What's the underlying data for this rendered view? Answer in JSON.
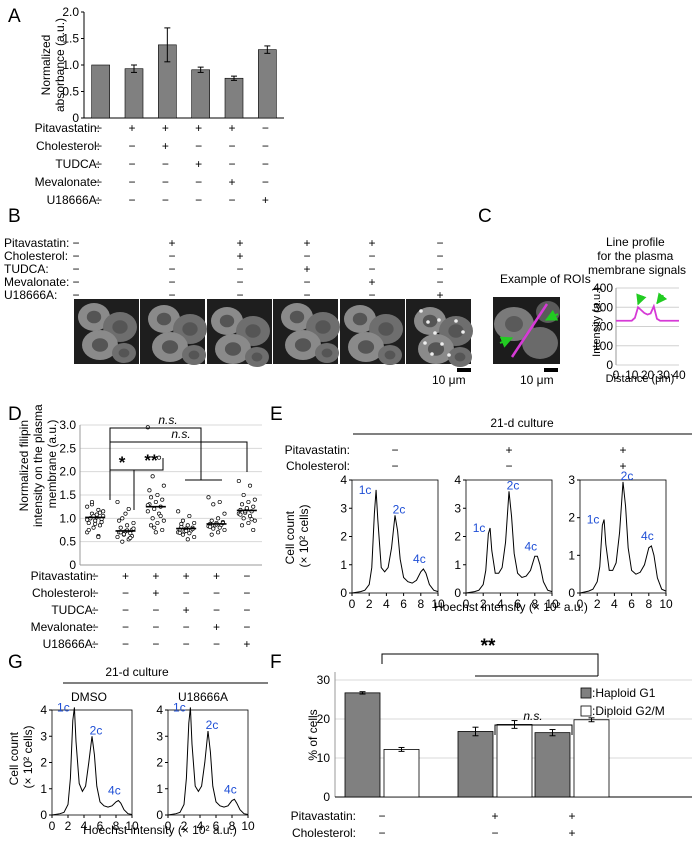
{
  "panel_labels": {
    "A": "A",
    "B": "B",
    "C": "C",
    "D": "D",
    "E": "E",
    "F": "F",
    "G": "G"
  },
  "colors": {
    "bar_gray": "#808080",
    "accent_blue": "#1f4fd6",
    "profile_magenta": "#d63ad6",
    "arrow_green": "#22cc22"
  },
  "row_labels": {
    "pitavastatin": "Pitavastatin:",
    "cholesterol": "Cholesterol:",
    "tudca": "TUDCA:",
    "mevalonate": "Mevalonate:",
    "u18666a": "U18666A:"
  },
  "signs": {
    "plus": "+",
    "minus": "−"
  },
  "conditions6": [
    {
      "pitavastatin": "−",
      "cholesterol": "−",
      "tudca": "−",
      "mevalonate": "−",
      "u18666a": "−"
    },
    {
      "pitavastatin": "+",
      "cholesterol": "−",
      "tudca": "−",
      "mevalonate": "−",
      "u18666a": "−"
    },
    {
      "pitavastatin": "+",
      "cholesterol": "+",
      "tudca": "−",
      "mevalonate": "−",
      "u18666a": "−"
    },
    {
      "pitavastatin": "+",
      "cholesterol": "−",
      "tudca": "+",
      "mevalonate": "−",
      "u18666a": "−"
    },
    {
      "pitavastatin": "+",
      "cholesterol": "−",
      "tudca": "−",
      "mevalonate": "+",
      "u18666a": "−"
    },
    {
      "pitavastatin": "−",
      "cholesterol": "−",
      "tudca": "−",
      "mevalonate": "−",
      "u18666a": "+"
    }
  ],
  "scale_bar": "10 μm",
  "panel_c": {
    "roi_title": "Example of ROIs",
    "profile_title": "Line profile for the plasma membrane signals"
  },
  "culture_label": "21-d culture",
  "histogram": {
    "ylabel_1": "Cell count",
    "ylabel_2": "(× 10² cells)",
    "xlabel": "Hoechst intensity (× 10² a.u.)",
    "peak_1c": "1c",
    "peak_2c": "2c",
    "peak_4c": "4c"
  },
  "panel_g": {
    "dmso": "DMSO",
    "u18666a": "U18666A"
  },
  "panel_f": {
    "legend_haploid": ":Haploid G1",
    "legend_diploid": ":Diploid G2/M"
  },
  "stats": {
    "single": "*",
    "double": "**",
    "ns": "n.s."
  },
  "chart_data": [
    {
      "panel": "A",
      "type": "bar",
      "categories": [
        "1",
        "2",
        "3",
        "4",
        "5",
        "6"
      ],
      "values": [
        1.0,
        0.93,
        1.38,
        0.91,
        0.75,
        1.29
      ],
      "errors": [
        0.0,
        0.07,
        0.32,
        0.05,
        0.04,
        0.07
      ],
      "ylabel": "Normalized absorbance (a.u.)",
      "ylim": [
        0,
        2.0
      ],
      "yticks": [
        "0",
        "0.5",
        "1.0",
        "1.5",
        "2.0"
      ]
    },
    {
      "panel": "C",
      "type": "line",
      "ylabel": "Intensity (a.u.)",
      "xlabel": "Distance (μm)",
      "ylim": [
        0,
        400
      ],
      "xlim": [
        0,
        40
      ],
      "yticks": [
        "0",
        "100",
        "200",
        "300",
        "400"
      ],
      "xticks": [
        "0",
        "10",
        "20",
        "30",
        "40"
      ],
      "x": [
        0,
        10,
        12,
        14,
        16,
        18,
        20,
        22,
        24,
        26,
        28,
        40
      ],
      "y": [
        230,
        230,
        245,
        300,
        285,
        270,
        262,
        268,
        305,
        240,
        230,
        230
      ]
    },
    {
      "panel": "D",
      "type": "scatter",
      "ylabel": "Normalized filipin intensity on the plasma membrane (a.u.)",
      "ylim": [
        0,
        3.0
      ],
      "yticks": [
        "0",
        "0.5",
        "1.0",
        "1.5",
        "2.0",
        "2.5",
        "3.0"
      ],
      "medians": [
        1.02,
        0.73,
        1.25,
        0.78,
        0.88,
        1.17
      ],
      "series": [
        {
          "values": [
            1.25,
            1.18,
            1.1,
            1.05,
            1.02,
            1.0,
            0.98,
            0.95,
            0.9,
            0.85,
            0.8,
            0.7,
            0.62,
            1.3,
            1.15,
            1.08,
            1.0,
            0.92,
            0.88,
            0.75,
            1.12,
            1.05,
            0.97,
            0.6,
            1.35
          ]
        },
        {
          "values": [
            1.35,
            1.2,
            1.0,
            0.9,
            0.85,
            0.8,
            0.75,
            0.72,
            0.7,
            0.68,
            0.65,
            0.6,
            0.55,
            0.5,
            0.78,
            0.74,
            0.7,
            0.62,
            1.1,
            0.95,
            0.58,
            0.66
          ]
        },
        {
          "values": [
            2.95,
            2.3,
            1.9,
            1.7,
            1.5,
            1.45,
            1.4,
            1.35,
            1.3,
            1.25,
            1.2,
            1.15,
            1.1,
            1.0,
            0.95,
            0.9,
            0.85,
            0.75,
            0.7,
            1.6,
            1.05,
            0.8,
            1.28
          ]
        },
        {
          "values": [
            1.15,
            1.05,
            0.95,
            0.9,
            0.85,
            0.82,
            0.8,
            0.78,
            0.76,
            0.74,
            0.72,
            0.7,
            0.68,
            0.65,
            0.6,
            0.55,
            0.88,
            0.77,
            0.73,
            0.69
          ]
        },
        {
          "values": [
            1.45,
            1.35,
            1.3,
            1.1,
            1.0,
            0.95,
            0.92,
            0.9,
            0.88,
            0.86,
            0.85,
            0.83,
            0.8,
            0.78,
            0.75,
            0.7,
            0.65,
            0.9,
            0.87,
            0.82
          ]
        },
        {
          "values": [
            1.8,
            1.7,
            1.5,
            1.4,
            1.35,
            1.3,
            1.25,
            1.2,
            1.18,
            1.15,
            1.12,
            1.1,
            1.05,
            1.0,
            0.95,
            0.9,
            0.85,
            0.75,
            1.22,
            1.08,
            0.98,
            1.15
          ]
        }
      ]
    },
    {
      "panel": "E",
      "type": "area",
      "xlim": [
        0,
        10
      ],
      "xticks": [
        "0",
        "2",
        "4",
        "6",
        "8",
        "10"
      ],
      "histograms": [
        {
          "ylim": [
            0,
            4
          ],
          "yticks": [
            "0",
            "1",
            "2",
            "3",
            "4"
          ],
          "x": [
            0,
            1,
            1.5,
            2,
            2.3,
            2.6,
            2.8,
            3.0,
            3.4,
            3.8,
            4.2,
            4.6,
            5.0,
            5.3,
            5.6,
            6.0,
            6.5,
            7.0,
            7.5,
            8.0,
            8.3,
            8.6,
            9.0,
            9.5,
            10
          ],
          "y": [
            0,
            0.05,
            0.1,
            0.3,
            0.9,
            2.8,
            3.65,
            2.6,
            0.9,
            0.75,
            0.9,
            1.6,
            2.75,
            2.2,
            1.2,
            0.55,
            0.4,
            0.35,
            0.45,
            0.75,
            0.85,
            0.7,
            0.3,
            0.1,
            0.05
          ]
        },
        {
          "ylim": [
            0,
            4
          ],
          "yticks": [
            "0",
            "1",
            "2",
            "3",
            "4"
          ],
          "x": [
            0,
            1,
            1.5,
            2,
            2.3,
            2.6,
            2.8,
            3.0,
            3.4,
            3.8,
            4.2,
            4.6,
            5.0,
            5.3,
            5.6,
            6.0,
            6.5,
            7.0,
            7.5,
            8.0,
            8.3,
            8.6,
            9.0,
            9.5,
            10
          ],
          "y": [
            0,
            0.05,
            0.1,
            0.3,
            0.8,
            2.1,
            2.3,
            1.5,
            0.7,
            0.7,
            0.9,
            1.8,
            3.6,
            2.7,
            1.4,
            0.7,
            0.55,
            0.6,
            0.8,
            1.3,
            1.3,
            1.0,
            0.4,
            0.1,
            0.05
          ]
        },
        {
          "ylim": [
            0,
            3
          ],
          "yticks": [
            "0",
            "1",
            "2",
            "3"
          ],
          "x": [
            0,
            1,
            1.5,
            2,
            2.3,
            2.6,
            2.8,
            3.0,
            3.4,
            3.8,
            4.2,
            4.6,
            5.0,
            5.3,
            5.6,
            6.0,
            6.5,
            7.0,
            7.5,
            8.0,
            8.3,
            8.6,
            9.0,
            9.5,
            10
          ],
          "y": [
            0,
            0.05,
            0.1,
            0.3,
            0.7,
            1.8,
            1.95,
            1.3,
            0.6,
            0.6,
            0.8,
            1.6,
            2.95,
            2.3,
            1.2,
            0.6,
            0.5,
            0.55,
            0.75,
            1.2,
            1.25,
            1.0,
            0.4,
            0.1,
            0.05
          ]
        }
      ]
    },
    {
      "panel": "G",
      "type": "area",
      "xlim": [
        0,
        10
      ],
      "ylim": [
        0,
        4
      ],
      "xticks": [
        "0",
        "2",
        "4",
        "6",
        "8",
        "10"
      ],
      "yticks": [
        "0",
        "1",
        "2",
        "3",
        "4"
      ],
      "histograms": [
        {
          "x": [
            0,
            1,
            1.5,
            2,
            2.3,
            2.6,
            2.8,
            3.0,
            3.4,
            3.8,
            4.2,
            4.6,
            5.0,
            5.3,
            5.6,
            6.0,
            6.5,
            7.0,
            7.5,
            8.0,
            8.3,
            8.6,
            9.0,
            9.5,
            10
          ],
          "y": [
            0,
            0.05,
            0.1,
            0.4,
            1.4,
            3.6,
            4.1,
            2.8,
            1.2,
            0.9,
            1.1,
            2.0,
            3.0,
            2.3,
            1.1,
            0.5,
            0.35,
            0.3,
            0.35,
            0.5,
            0.55,
            0.45,
            0.2,
            0.05,
            0.02
          ]
        },
        {
          "x": [
            0,
            1,
            1.5,
            2,
            2.3,
            2.6,
            2.8,
            3.0,
            3.4,
            3.8,
            4.2,
            4.6,
            5.0,
            5.3,
            5.6,
            6.0,
            6.5,
            7.0,
            7.5,
            8.0,
            8.3,
            8.6,
            9.0,
            9.5,
            10
          ],
          "y": [
            0,
            0.05,
            0.1,
            0.4,
            1.4,
            3.5,
            4.1,
            2.7,
            1.1,
            0.9,
            1.1,
            2.0,
            3.2,
            2.4,
            1.1,
            0.5,
            0.35,
            0.3,
            0.35,
            0.55,
            0.6,
            0.45,
            0.2,
            0.05,
            0.02
          ]
        }
      ]
    },
    {
      "panel": "F",
      "type": "bar",
      "ylabel": "% of cells",
      "ylim": [
        0,
        30
      ],
      "yticks": [
        "0",
        "10",
        "20",
        "30"
      ],
      "series": [
        {
          "name": "Haploid G1",
          "values": [
            26.7,
            16.8,
            16.5
          ],
          "errors": [
            0.3,
            1.1,
            0.8
          ]
        },
        {
          "name": "Diploid G2/M",
          "values": [
            12.2,
            18.6,
            19.8
          ],
          "errors": [
            0.5,
            1.0,
            0.5
          ]
        }
      ]
    }
  ]
}
